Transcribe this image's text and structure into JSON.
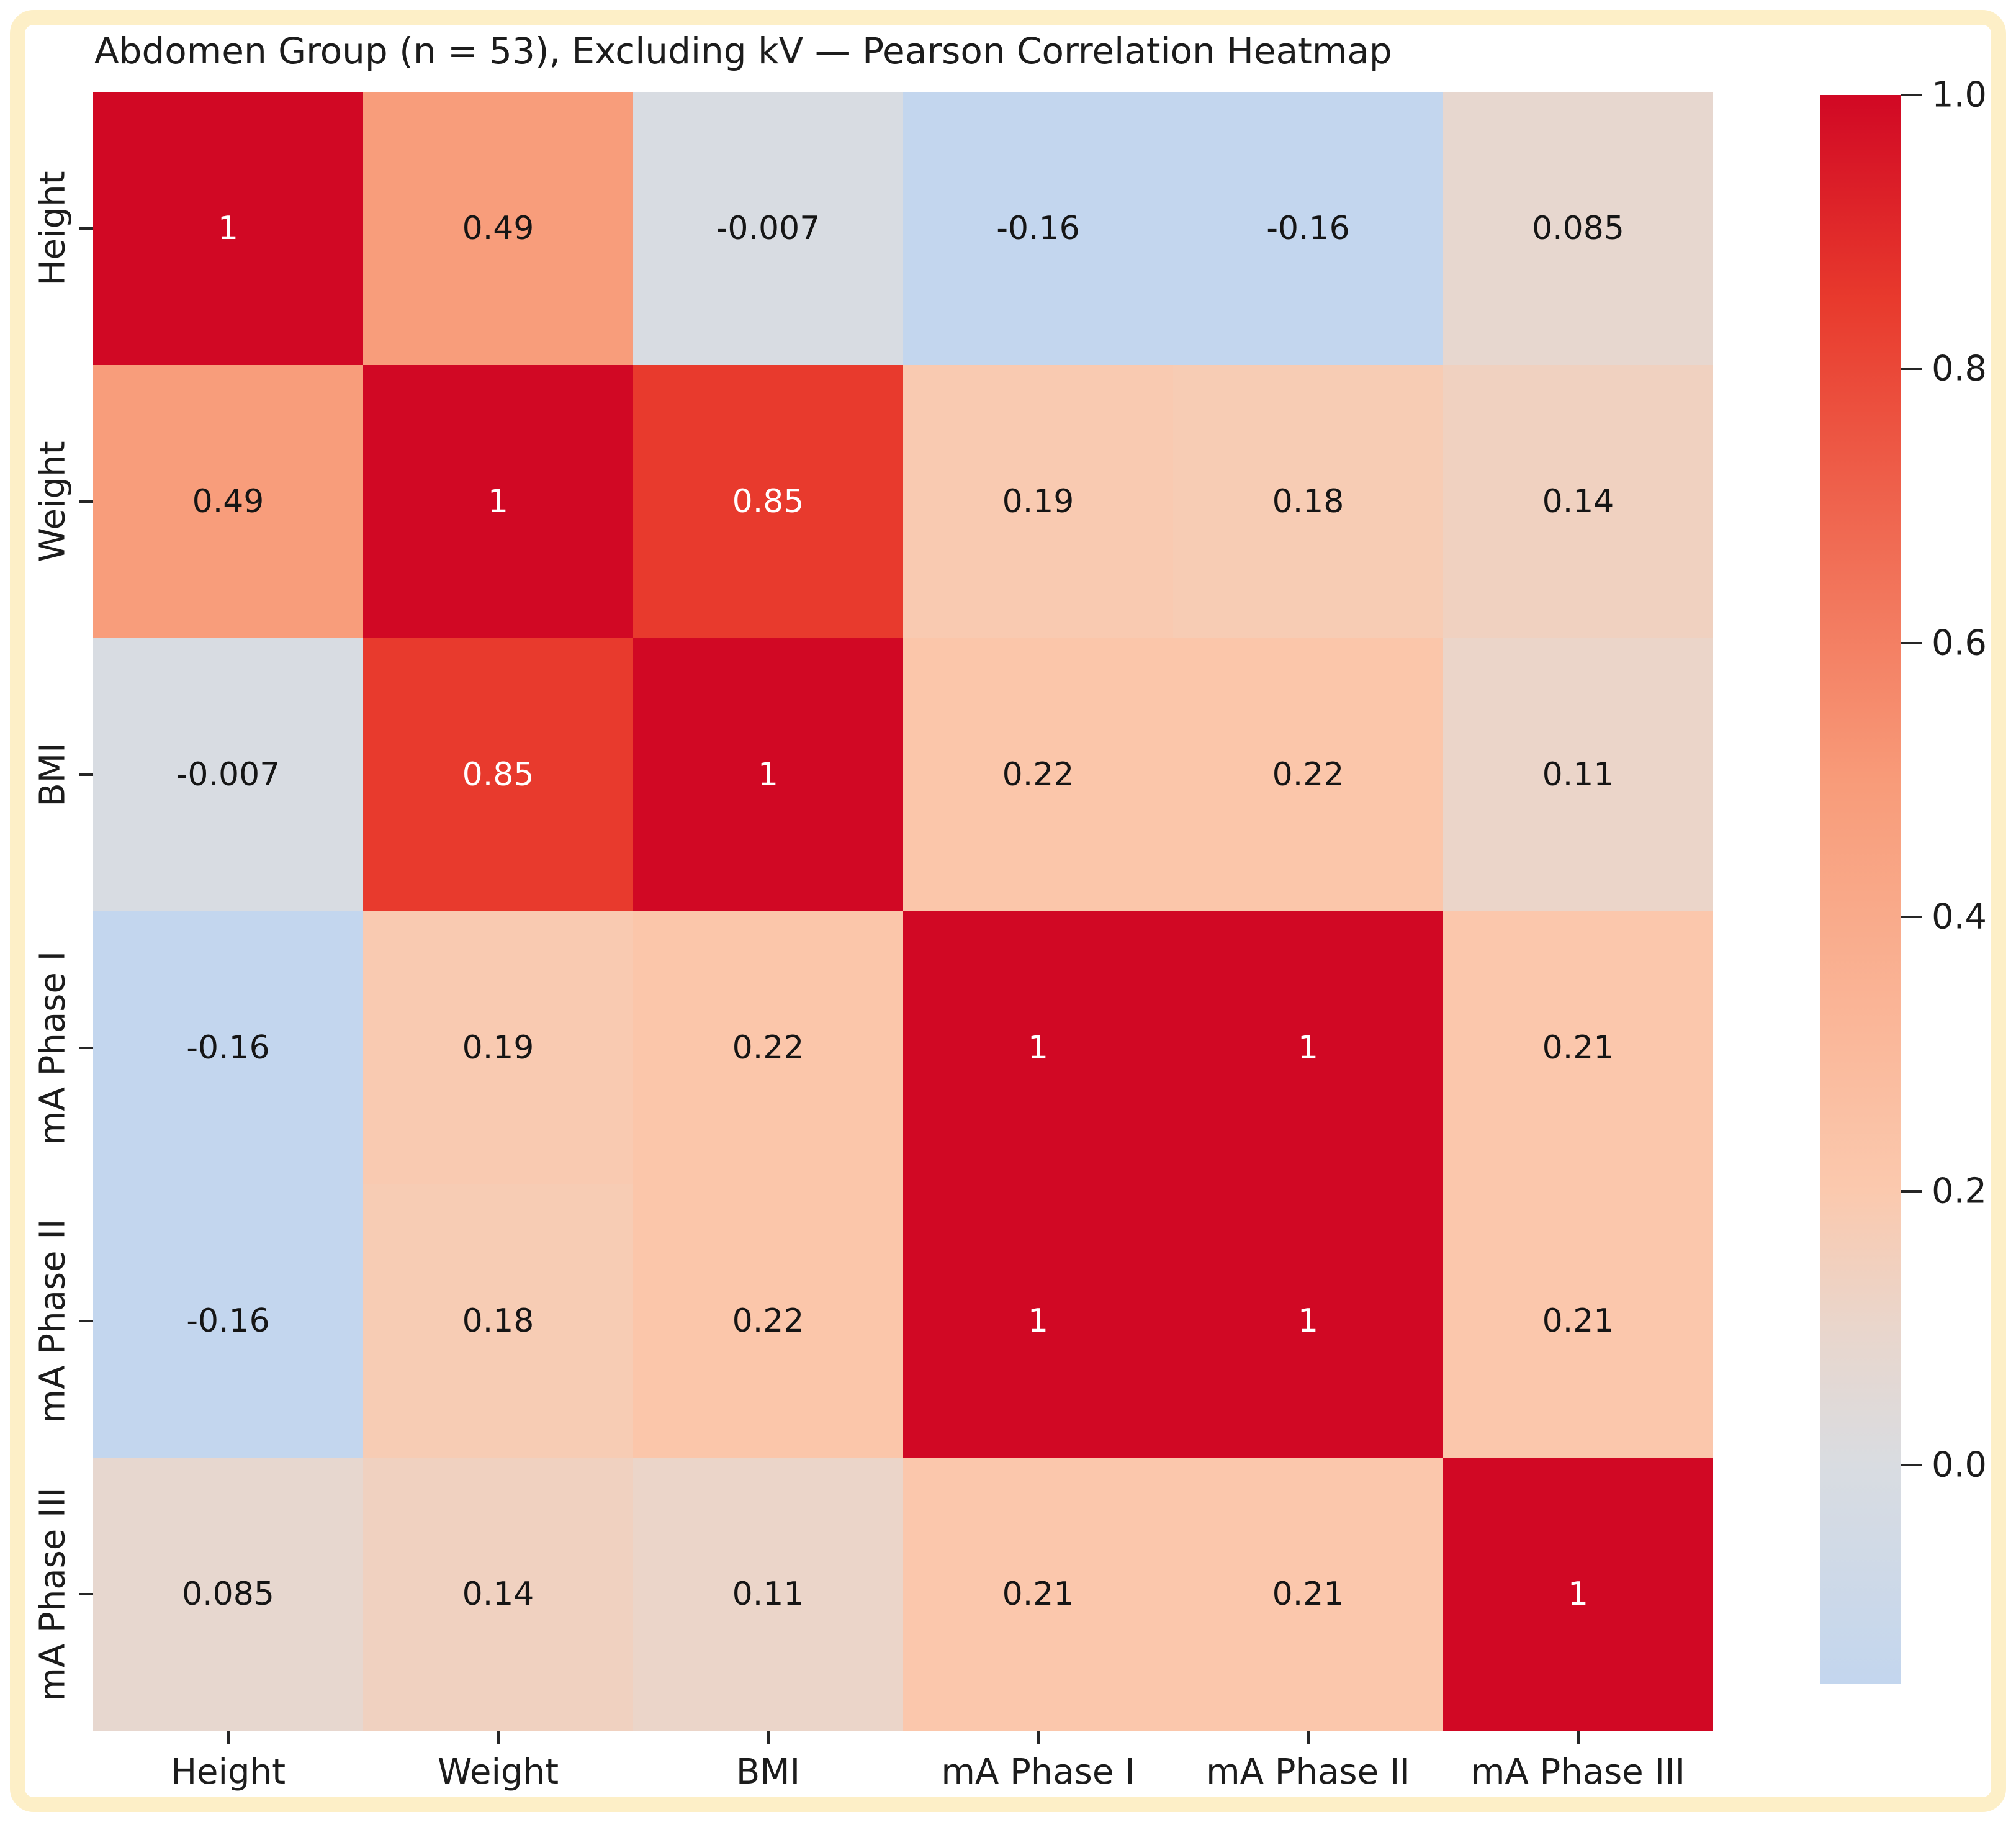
{
  "title": "Abdomen Group (n = 53), Excluding kV — Pearson Correlation Heatmap",
  "frame_border_color": "#fdefc7",
  "chart_data": {
    "type": "heatmap",
    "title": "Abdomen Group (n = 53), Excluding kV — Pearson Correlation Heatmap",
    "categories": [
      "Height",
      "Weight",
      "BMI",
      "mA Phase I",
      "mA Phase II",
      "mA Phase III"
    ],
    "x_tick_labels": [
      "Height",
      "Weight",
      "BMI",
      "mA Phase I",
      "mA Phase II",
      "mA Phase III"
    ],
    "y_tick_labels": [
      "Height",
      "Weight",
      "BMI",
      "mA Phase I",
      "mA Phase II",
      "mA Phase III"
    ],
    "matrix": [
      [
        "1",
        "0.49",
        "-0.007",
        "-0.16",
        "-0.16",
        "0.085"
      ],
      [
        "0.49",
        "1",
        "0.85",
        "0.19",
        "0.18",
        "0.14"
      ],
      [
        "-0.007",
        "0.85",
        "1",
        "0.22",
        "0.22",
        "0.11"
      ],
      [
        "-0.16",
        "0.19",
        "0.22",
        "1",
        "1",
        "0.21"
      ],
      [
        "-0.16",
        "0.18",
        "0.22",
        "1",
        "1",
        "0.21"
      ],
      [
        "0.085",
        "0.14",
        "0.11",
        "0.21",
        "0.21",
        "1"
      ]
    ],
    "grid": false,
    "legend_position": "right-colorbar",
    "colorbar": {
      "tick_labels": [
        "1.0",
        "0.8",
        "0.6",
        "0.4",
        "0.2",
        "0.0"
      ],
      "tick_values": [
        1.0,
        0.8,
        0.6,
        0.4,
        0.2,
        0.0
      ],
      "vmin": -0.16,
      "vmax": 1.0
    },
    "colormap_anchors": [
      {
        "v": -0.16,
        "c": "#c3d6ee"
      },
      {
        "v": 0.0,
        "c": "#d9dce1"
      },
      {
        "v": 0.1,
        "c": "#e9d6cc"
      },
      {
        "v": 0.2,
        "c": "#fbc9ae"
      },
      {
        "v": 0.5,
        "c": "#f89b79"
      },
      {
        "v": 0.85,
        "c": "#e83a2d"
      },
      {
        "v": 1.0,
        "c": "#d10824"
      }
    ],
    "annotation_white_text_threshold": 0.7,
    "annotation_colors": {
      "dark": "#151515",
      "light": "#ffffff"
    }
  }
}
